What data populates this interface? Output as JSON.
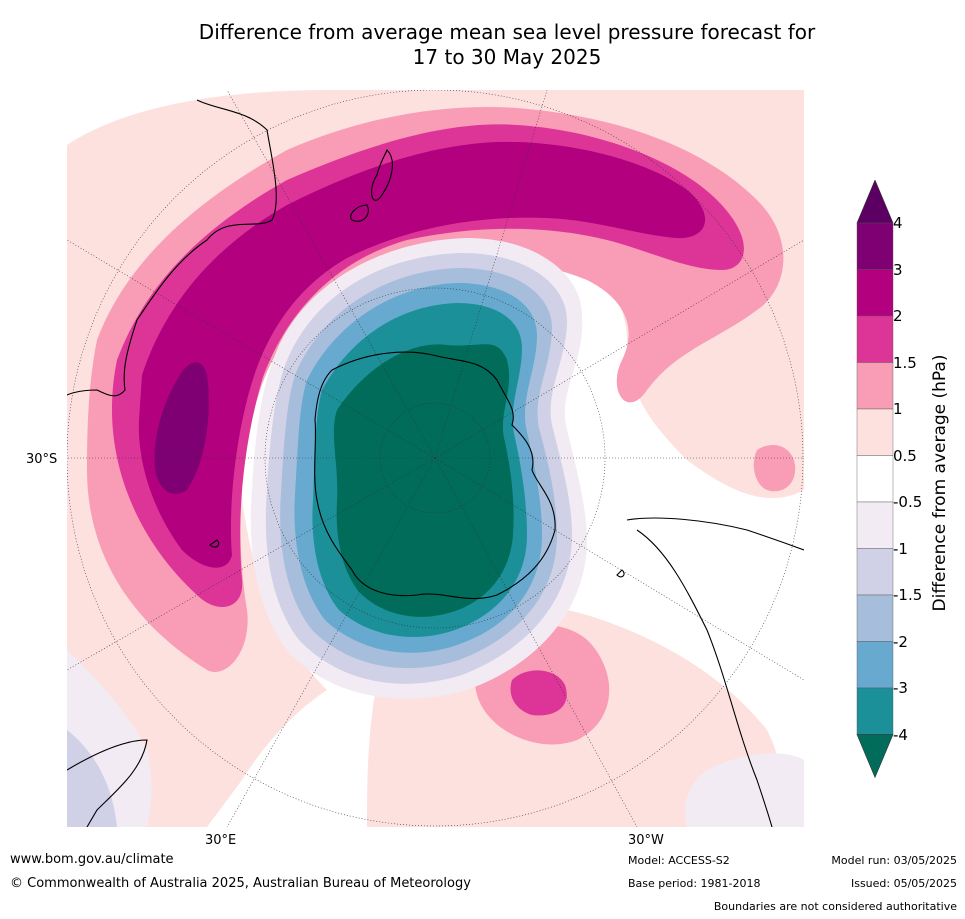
{
  "title_line1": "Difference from average mean sea level pressure forecast for",
  "title_line2": "17 to 30 May 2025",
  "map": {
    "lat_label": "30°S",
    "lon_label_east": "30°E",
    "lon_label_west": "30°W"
  },
  "colorbar": {
    "label": "Difference from average (hPa)",
    "ticks": [
      "4",
      "3",
      "2",
      "1.5",
      "1",
      "0.5",
      "-0.5",
      "-1",
      "-1.5",
      "-2",
      "-3",
      "-4"
    ],
    "colors": [
      "#5b0062",
      "#7e0073",
      "#b2007e",
      "#dc3597",
      "#f99cb6",
      "#fde1df",
      "#ffffff",
      "#f2ebf3",
      "#d0d1e6",
      "#a6bddb",
      "#67a9cf",
      "#1c9099",
      "#016c59"
    ]
  },
  "footer": {
    "website": "www.bom.gov.au/climate",
    "copyright": "© Commonwealth of Australia 2025, Australian Bureau of Meteorology",
    "model": "Model: ACCESS-S2",
    "base_period": "Base period: 1981-2018",
    "model_run": "Model run: 03/05/2025",
    "issued": "Issued: 05/05/2025",
    "disclaimer": "Boundaries are not considered authoritative"
  }
}
